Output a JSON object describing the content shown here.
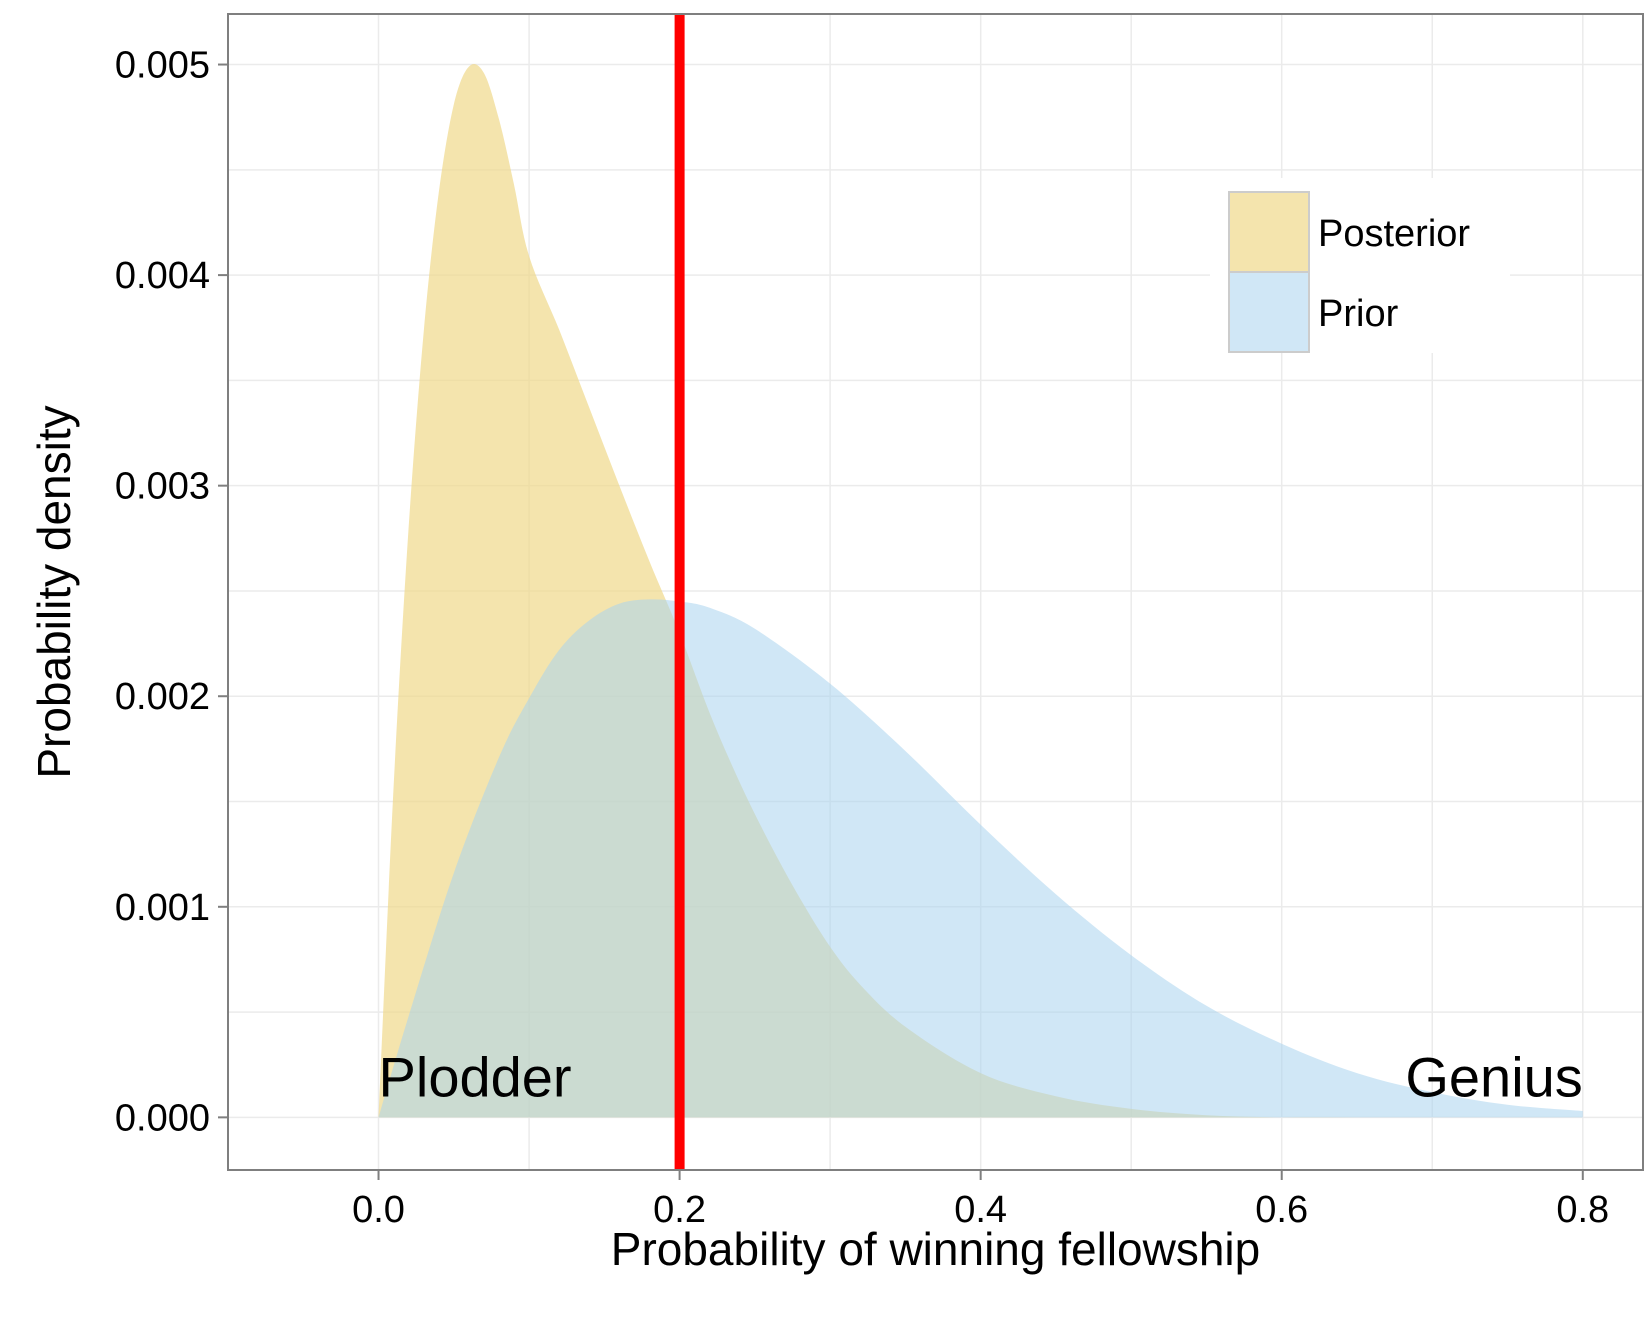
{
  "chart_data": {
    "type": "area",
    "title": "",
    "xlabel": "Probability of winning fellowship",
    "ylabel": "Probability density",
    "xlim": [
      -0.1,
      0.84
    ],
    "ylim": [
      -0.00025,
      0.00524
    ],
    "x_ticks": [
      0.0,
      0.2,
      0.4,
      0.6,
      0.8
    ],
    "x_tick_labels": [
      "0.0",
      "0.2",
      "0.4",
      "0.6",
      "0.8"
    ],
    "y_ticks": [
      0.0,
      0.001,
      0.002,
      0.003,
      0.004,
      0.005
    ],
    "y_tick_labels": [
      "0.000",
      "0.001",
      "0.002",
      "0.003",
      "0.004",
      "0.005"
    ],
    "grid": true,
    "legend_position": "top-right",
    "series": [
      {
        "name": "Posterior",
        "color": "#f0d88a",
        "opacity": 0.7,
        "x": [
          0.0,
          0.01,
          0.02,
          0.03,
          0.04,
          0.05,
          0.06,
          0.07,
          0.08,
          0.09,
          0.1,
          0.12,
          0.14,
          0.16,
          0.18,
          0.2,
          0.22,
          0.24,
          0.26,
          0.28,
          0.3,
          0.32,
          0.35,
          0.4,
          0.45,
          0.5,
          0.55,
          0.6,
          0.65,
          0.7,
          0.75,
          0.8
        ],
        "values": [
          0.0,
          0.00157,
          0.0028,
          0.00373,
          0.00439,
          0.00481,
          0.00499,
          0.00496,
          0.00474,
          0.00443,
          0.00409,
          0.00374,
          0.00337,
          0.003,
          0.00264,
          0.0023,
          0.00192,
          0.00159,
          0.0013,
          0.00104,
          0.00081,
          0.00063,
          0.00043,
          0.00021,
          0.0001,
          4e-05,
          1e-05,
          0.0,
          0.0,
          0.0,
          0.0,
          0.0
        ]
      },
      {
        "name": "Prior",
        "color": "#a9d3ee",
        "opacity": 0.55,
        "x": [
          0.0,
          0.02,
          0.05,
          0.08,
          0.1,
          0.12,
          0.14,
          0.16,
          0.18,
          0.2,
          0.22,
          0.25,
          0.3,
          0.35,
          0.4,
          0.45,
          0.5,
          0.55,
          0.6,
          0.65,
          0.7,
          0.75,
          0.8
        ],
        "values": [
          0.0,
          0.00048,
          0.00116,
          0.00171,
          0.00199,
          0.00222,
          0.00236,
          0.00244,
          0.00246,
          0.00245,
          0.00242,
          0.00232,
          0.00206,
          0.00174,
          0.00139,
          0.00106,
          0.00077,
          0.00053,
          0.00035,
          0.00021,
          0.00012,
          6e-05,
          3e-05
        ]
      }
    ],
    "vertical_line": {
      "x": 0.2,
      "color": "#ff0000"
    },
    "annotations": [
      {
        "text": "Plodder",
        "x": 0.0,
        "y": 0.0001,
        "anchor": "start"
      },
      {
        "text": "Genius",
        "x": 0.8,
        "y": 0.0001,
        "anchor": "end"
      }
    ]
  }
}
